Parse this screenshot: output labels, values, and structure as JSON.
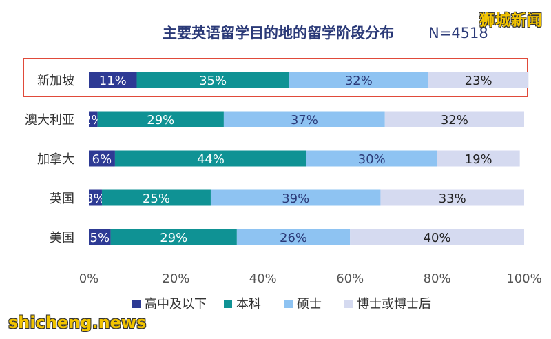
{
  "watermarks": {
    "top_right": "狮城新闻",
    "bottom_left": "shicheng.news"
  },
  "chart_data": {
    "type": "bar",
    "orientation": "horizontal",
    "stacked": true,
    "title": "主要英语留学目的地的留学阶段分布",
    "sample_size": "N=4518",
    "categories": [
      "新加坡",
      "澳大利亚",
      "加拿大",
      "英国",
      "美国"
    ],
    "highlighted_category": "新加坡",
    "highlight_color": "#e04a3a",
    "series": [
      {
        "name": "高中及以下",
        "color": "#2d3a94",
        "label_color": "#ffffff",
        "values": [
          11,
          2,
          6,
          3,
          5
        ]
      },
      {
        "name": "本科",
        "color": "#0f9294",
        "label_color": "#ffffff",
        "values": [
          35,
          29,
          44,
          25,
          29
        ]
      },
      {
        "name": "硕士",
        "color": "#8ec3f2",
        "label_color": "#2b3a78",
        "values": [
          32,
          37,
          30,
          39,
          26
        ]
      },
      {
        "name": "博士或博士后",
        "color": "#d5daf0",
        "label_color": "#222222",
        "values": [
          23,
          32,
          19,
          33,
          40
        ]
      }
    ],
    "xlim": [
      0,
      100
    ],
    "xticks": [
      "0%",
      "20%",
      "40%",
      "60%",
      "80%",
      "100%"
    ],
    "legend_position": "bottom",
    "grid": false
  }
}
